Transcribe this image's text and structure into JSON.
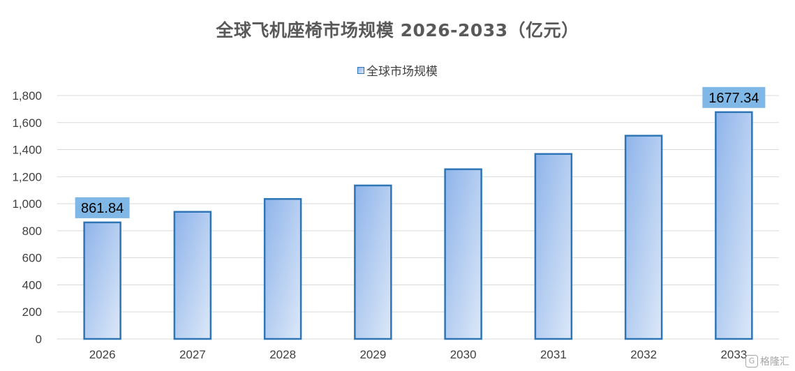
{
  "chart_data": {
    "type": "bar",
    "title": "全球飞机座椅市场规模 2026-2033（亿元）",
    "legend": "全球市场规模",
    "legend_position": "top",
    "categories": [
      "2026",
      "2027",
      "2028",
      "2029",
      "2030",
      "2031",
      "2032",
      "2033"
    ],
    "series": [
      {
        "name": "全球市场规模",
        "values": [
          861.84,
          940,
          1035,
          1135,
          1255,
          1368,
          1503,
          1677.34
        ]
      }
    ],
    "data_labels": [
      {
        "index": 0,
        "text": "861.84"
      },
      {
        "index": 7,
        "text": "1677.34"
      }
    ],
    "ylim": [
      0,
      1800
    ],
    "yticks": [
      0,
      200,
      400,
      600,
      800,
      1000,
      1200,
      1400,
      1600,
      1800
    ],
    "ytick_labels": [
      "0",
      "200",
      "400",
      "600",
      "800",
      "1,000",
      "1,200",
      "1,400",
      "1,600",
      "1,800"
    ],
    "grid": true,
    "colors": {
      "bar_border": "#2E75B6",
      "bar_fill_start": "#8FB4EA",
      "bar_fill_end": "#DCE8F8",
      "label_bg": "#7FB7E6",
      "grid": "#D9D9D9",
      "axis_text": "#404040",
      "title": "#595959"
    }
  },
  "watermark": {
    "icon": "gelonghui-logo-icon",
    "text": "格隆汇"
  }
}
